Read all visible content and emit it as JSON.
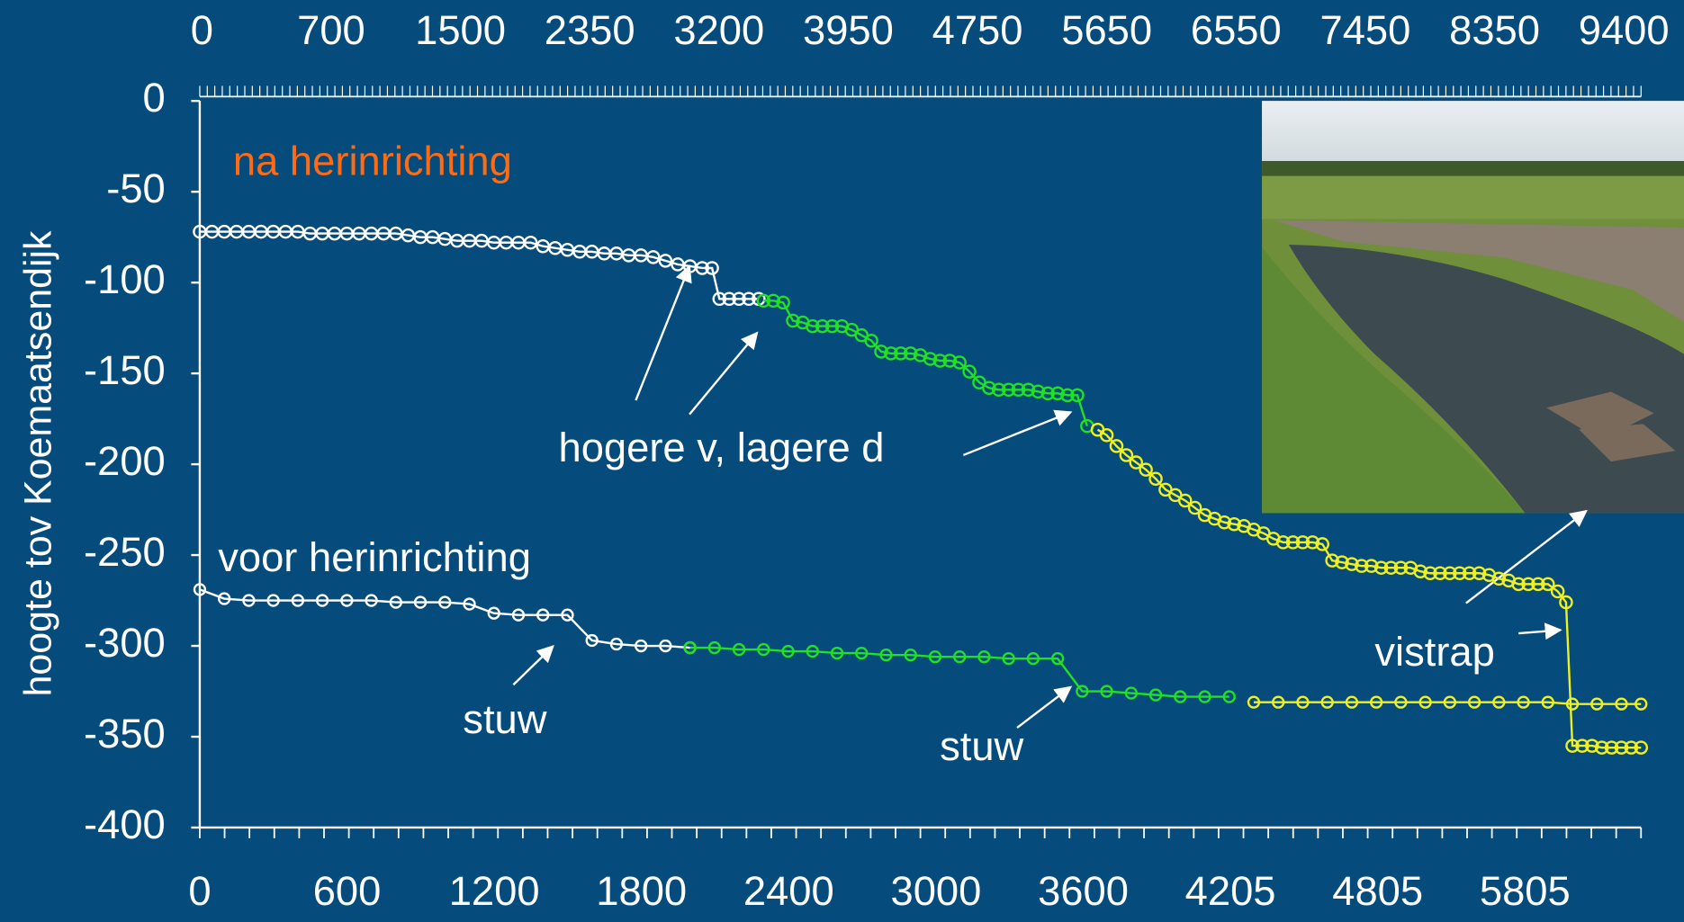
{
  "chart_data": {
    "type": "line",
    "ylabel": "hoogte tov Koemaatsendijk",
    "ylim": [
      -400,
      0
    ],
    "yticks": [
      0,
      -50,
      -100,
      -150,
      -200,
      -250,
      -300,
      -350,
      -400
    ],
    "xlim": [
      0,
      5880
    ],
    "top_axis_labels": [
      "0",
      "700",
      "1500",
      "2350",
      "3200",
      "3950",
      "4750",
      "5650",
      "6550",
      "7450",
      "8350",
      "9400"
    ],
    "bottom_axis_labels": [
      "0",
      "600",
      "1200",
      "1800",
      "2400",
      "3000",
      "3600",
      "4205",
      "4805",
      "5805"
    ],
    "annotations": [
      "na herinrichting",
      "hogere v, lagere d",
      "voor herinrichting",
      "stuw",
      "stuw",
      "vistrap"
    ],
    "series": [
      {
        "color": "#ffffff",
        "marker_size": "large",
        "x": [
          0,
          50,
          100,
          150,
          200,
          250,
          300,
          350,
          400,
          450,
          500,
          550,
          600,
          650,
          700,
          750,
          800,
          850,
          900,
          950,
          1000,
          1050,
          1100,
          1150,
          1200,
          1250,
          1300,
          1350,
          1400,
          1450,
          1500,
          1550,
          1600,
          1650,
          1700,
          1750,
          1800,
          1850,
          1900,
          1950,
          2000,
          2050,
          2090,
          2120,
          2160,
          2200,
          2240,
          2280
        ],
        "values": [
          -72,
          -72,
          -72,
          -72,
          -72,
          -72,
          -72,
          -72,
          -72,
          -73,
          -73,
          -73,
          -73,
          -73,
          -73,
          -73,
          -73,
          -74,
          -75,
          -75,
          -76,
          -77,
          -77,
          -77,
          -78,
          -78,
          -78,
          -78,
          -80,
          -81,
          -82,
          -83,
          -83,
          -84,
          -84,
          -85,
          -85,
          -86,
          -88,
          -90,
          -91,
          -92,
          -92,
          -109,
          -109,
          -109,
          -109,
          -109
        ]
      },
      {
        "color": "#22e022",
        "marker_size": "large",
        "x": [
          2300,
          2340,
          2380,
          2420,
          2460,
          2500,
          2540,
          2580,
          2620,
          2660,
          2700,
          2740,
          2780,
          2820,
          2860,
          2900,
          2940,
          2980,
          3020,
          3060,
          3100,
          3140,
          3180,
          3220,
          3260,
          3300,
          3340,
          3380,
          3420,
          3460,
          3500,
          3540,
          3580,
          3620
        ],
        "values": [
          -110,
          -110,
          -111,
          -121,
          -122,
          -124,
          -124,
          -124,
          -124,
          -126,
          -129,
          -132,
          -138,
          -139,
          -139,
          -139,
          -140,
          -142,
          -143,
          -143,
          -144,
          -149,
          -155,
          -158,
          -159,
          -159,
          -159,
          -159,
          -160,
          -161,
          -161,
          -162,
          -162,
          -179
        ]
      },
      {
        "color": "#f0f020",
        "marker_size": "large",
        "x": [
          3663,
          3700,
          3740,
          3780,
          3820,
          3860,
          3900,
          3940,
          3980,
          4020,
          4060,
          4100,
          4140,
          4180,
          4220,
          4260,
          4300,
          4340,
          4380,
          4420,
          4460,
          4500,
          4540,
          4580,
          4620,
          4660,
          4700,
          4740,
          4780,
          4820,
          4860,
          4900,
          4940,
          4980,
          5020,
          5060,
          5100,
          5140,
          5180,
          5220,
          5260,
          5300,
          5340,
          5380,
          5420,
          5460,
          5500,
          5540,
          5574,
          5600,
          5640,
          5680,
          5720,
          5760,
          5800,
          5840,
          5880
        ],
        "values": [
          -181,
          -184,
          -190,
          -195,
          -199,
          -203,
          -208,
          -214,
          -217,
          -220,
          -224,
          -228,
          -230,
          -232,
          -233,
          -234,
          -236,
          -238,
          -241,
          -243,
          -243,
          -243,
          -243,
          -244,
          -253,
          -254,
          -255,
          -256,
          -256,
          -257,
          -257,
          -257,
          -257,
          -259,
          -260,
          -260,
          -260,
          -260,
          -260,
          -260,
          -261,
          -263,
          -264,
          -266,
          -266,
          -266,
          -266,
          -270,
          -276,
          -355,
          -355,
          -355,
          -356,
          -356,
          -356,
          -356,
          -356
        ]
      },
      {
        "color": "#ffffff",
        "marker_size": "small",
        "x": [
          0,
          100,
          200,
          300,
          400,
          500,
          600,
          700,
          800,
          900,
          1000,
          1100,
          1200,
          1300,
          1400,
          1500,
          1600,
          1700,
          1800,
          1900,
          2000
        ],
        "values": [
          -269,
          -274,
          -275,
          -275,
          -275,
          -275,
          -275,
          -275,
          -276,
          -276,
          -276,
          -277,
          -282,
          -283,
          -283,
          -283,
          -297,
          -299,
          -300,
          -300,
          -301
        ]
      },
      {
        "color": "#22e022",
        "marker_size": "small",
        "x": [
          2000,
          2100,
          2200,
          2300,
          2400,
          2500,
          2600,
          2700,
          2800,
          2900,
          3000,
          3100,
          3200,
          3300,
          3400,
          3500,
          3600,
          3700,
          3800,
          3900,
          4000,
          4100,
          4200
        ],
        "values": [
          -301,
          -301,
          -302,
          -302,
          -303,
          -303,
          -304,
          -304,
          -305,
          -305,
          -306,
          -306,
          -306,
          -307,
          -307,
          -307,
          -325,
          -325,
          -326,
          -327,
          -328,
          -328,
          -328
        ]
      },
      {
        "color": "#f0f020",
        "marker_size": "small",
        "x": [
          4300,
          4400,
          4500,
          4600,
          4700,
          4800,
          4900,
          5000,
          5100,
          5200,
          5300,
          5400,
          5500,
          5600,
          5700,
          5800,
          5880
        ],
        "values": [
          -331,
          -331,
          -331,
          -331,
          -331,
          -331,
          -331,
          -331,
          -331,
          -331,
          -331,
          -331,
          -331,
          -332,
          -332,
          -332,
          -332
        ]
      }
    ]
  }
}
